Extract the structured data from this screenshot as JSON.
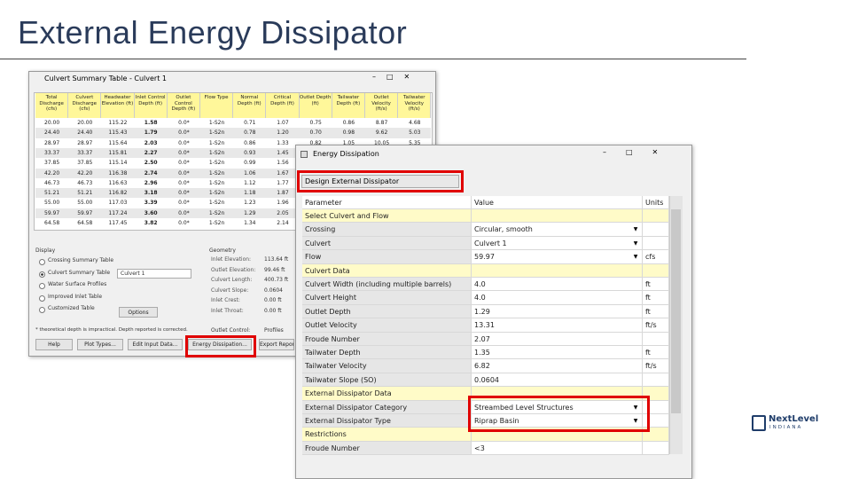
{
  "slide_title": "External Energy Dissipator",
  "background_window": {
    "title": "Culvert Summary Table - Culvert 1",
    "columns": [
      "Total Discharge (cfs)",
      "Culvert Discharge (cfs)",
      "Headwater Elevation (ft)",
      "Inlet Control Depth (ft)",
      "Outlet Control Depth (ft)",
      "Flow Type",
      "Normal Depth (ft)",
      "Critical Depth (ft)",
      "Outlet Depth (ft)",
      "Tailwater Depth (ft)",
      "Outlet Velocity (ft/s)",
      "Tailwater Velocity (ft/s)"
    ],
    "rows": [
      [
        "20.00",
        "20.00",
        "115.22",
        "1.58",
        "0.0*",
        "1-S2n",
        "0.71",
        "1.07",
        "0.75",
        "0.86",
        "8.87",
        "4.68"
      ],
      [
        "24.40",
        "24.40",
        "115.43",
        "1.79",
        "0.0*",
        "1-S2n",
        "0.78",
        "1.20",
        "0.70",
        "0.98",
        "9.62",
        "5.03"
      ],
      [
        "28.97",
        "28.97",
        "115.64",
        "2.03",
        "0.0*",
        "1-S2n",
        "0.86",
        "1.33",
        "0.82",
        "1.05",
        "10.05",
        "5.35"
      ],
      [
        "33.37",
        "33.37",
        "115.81",
        "2.27",
        "0.0*",
        "1-S2n",
        "0.93",
        "1.45",
        "0.88",
        "1.12",
        "10.58",
        "5.62"
      ],
      [
        "37.85",
        "37.85",
        "115.14",
        "2.50",
        "0.0*",
        "1-S2n",
        "0.99",
        "1.56",
        "0.94",
        "1.19",
        "11.05",
        "5.88"
      ],
      [
        "42.20",
        "42.20",
        "116.38",
        "2.74",
        "0.0*",
        "1-S2n",
        "1.06",
        "1.67",
        "1.00",
        "1.24",
        "11.64",
        "6.12"
      ],
      [
        "46.73",
        "46.73",
        "116.63",
        "2.96",
        "0.0*",
        "1-S2n",
        "1.12",
        "1.77",
        "1.07",
        "1.28",
        "12.23",
        "6.34"
      ],
      [
        "51.21",
        "51.21",
        "116.82",
        "3.18",
        "0.0*",
        "1-S2n",
        "1.18",
        "1.87",
        "1.14",
        "1.31",
        "12.69",
        "6.55"
      ],
      [
        "55.00",
        "55.00",
        "117.03",
        "3.39",
        "0.0*",
        "1-S2n",
        "1.23",
        "1.96",
        "1.21",
        "1.33",
        "13.00",
        "6.70"
      ],
      [
        "59.97",
        "59.97",
        "117.24",
        "3.60",
        "0.0*",
        "1-S2n",
        "1.29",
        "2.05",
        "1.29",
        "1.35",
        "13.31",
        "6.82"
      ],
      [
        "64.58",
        "64.58",
        "117.45",
        "3.82",
        "0.0*",
        "1-S2n",
        "1.34",
        "2.14",
        "1.34",
        "1.37",
        "13.70",
        "6.95"
      ]
    ],
    "display": {
      "label": "Display",
      "options": [
        "Crossing Summary Table",
        "Culvert Summary Table",
        "Water Surface Profiles",
        "Improved Inlet Table",
        "Customized Table"
      ],
      "culvert": "Culvert 1",
      "button": "Options"
    },
    "geometry": {
      "label": "Geometry",
      "items": [
        {
          "label": "Inlet Elevation:",
          "value": "113.64 ft"
        },
        {
          "label": "Outlet Elevation:",
          "value": "99.46 ft"
        },
        {
          "label": "Culvert Length:",
          "value": "400.73 ft"
        },
        {
          "label": "Culvert Slope:",
          "value": "0.0604"
        },
        {
          "label": "Inlet Crest:",
          "value": "0.00 ft"
        },
        {
          "label": "Inlet Throat:",
          "value": "0.00 ft"
        }
      ]
    },
    "outlet_control": {
      "label": "Outlet Control:",
      "value": "Profiles"
    },
    "footnote": "* theoretical depth is impractical. Depth reported is corrected.",
    "buttons": [
      "Help",
      "Plot Types...",
      "Edit Input Data...",
      "Energy Dissipation...",
      "Export Report"
    ]
  },
  "front_window": {
    "title": "Energy Dissipation",
    "mode": "Design External Dissipator",
    "headers": [
      "Parameter",
      "Value",
      "Units"
    ],
    "rows": [
      {
        "parameter": "Select Culvert and Flow"
      },
      {
        "parameter": "Crossing",
        "value": "Circular, smooth"
      },
      {
        "parameter": "Culvert",
        "value": "Culvert 1"
      },
      {
        "parameter": "Flow",
        "value": "59.97",
        "units": "cfs"
      },
      {
        "parameter": "Culvert Data"
      },
      {
        "parameter": "Culvert Width (including multiple barrels)",
        "value": "4.0",
        "units": "ft"
      },
      {
        "parameter": "Culvert Height",
        "value": "4.0",
        "units": "ft"
      },
      {
        "parameter": "Outlet Depth",
        "value": "1.29",
        "units": "ft"
      },
      {
        "parameter": "Outlet Velocity",
        "value": "13.31",
        "units": "ft/s"
      },
      {
        "parameter": "Froude Number",
        "value": "2.07"
      },
      {
        "parameter": "Tailwater Depth",
        "value": "1.35",
        "units": "ft"
      },
      {
        "parameter": "Tailwater Velocity",
        "value": "6.82",
        "units": "ft/s"
      },
      {
        "parameter": "Tailwater Slope (SO)",
        "value": "0.0604"
      },
      {
        "parameter": "External Dissipator Data"
      },
      {
        "parameter": "External Dissipator Category",
        "value": "Streambed Level Structures"
      },
      {
        "parameter": "External Dissipator Type",
        "value": "Riprap Basin"
      },
      {
        "parameter": "Restrictions"
      },
      {
        "parameter": "Froude Number",
        "value": "<3"
      }
    ],
    "dropdown_rows": [
      1,
      2,
      3,
      14,
      15
    ]
  },
  "logo": {
    "name": "NextLevel",
    "subtitle": "INDIANA"
  }
}
